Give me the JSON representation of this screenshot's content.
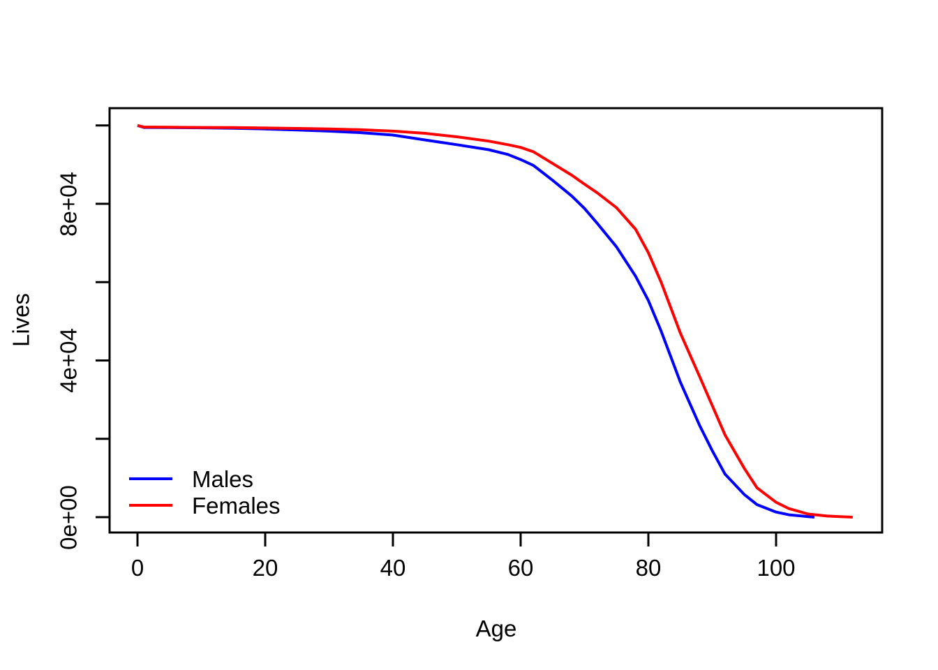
{
  "chart_data": {
    "type": "line",
    "title": "",
    "xlabel": "Age",
    "ylabel": "Lives",
    "xlim": [
      0,
      112
    ],
    "ylim": [
      0,
      100000
    ],
    "grid": false,
    "background": "#ffffff",
    "axis_color": "#000000",
    "x_ticks": [
      {
        "value": 0,
        "label": "0"
      },
      {
        "value": 20,
        "label": "20"
      },
      {
        "value": 40,
        "label": "40"
      },
      {
        "value": 60,
        "label": "60"
      },
      {
        "value": 80,
        "label": "80"
      },
      {
        "value": 100,
        "label": "100"
      }
    ],
    "y_ticks": [
      {
        "value": 0,
        "label": "0e+00"
      },
      {
        "value": 20000,
        "label": ""
      },
      {
        "value": 40000,
        "label": "4e+04"
      },
      {
        "value": 60000,
        "label": ""
      },
      {
        "value": 80000,
        "label": "8e+04"
      },
      {
        "value": 100000,
        "label": ""
      }
    ],
    "legend": {
      "position": "bottom-left",
      "box": false
    },
    "series": [
      {
        "name": "Males",
        "color": "#0000ff",
        "points": [
          [
            0,
            100000
          ],
          [
            1,
            99500
          ],
          [
            5,
            99450
          ],
          [
            10,
            99400
          ],
          [
            15,
            99300
          ],
          [
            20,
            99100
          ],
          [
            25,
            98850
          ],
          [
            30,
            98550
          ],
          [
            35,
            98150
          ],
          [
            40,
            97550
          ],
          [
            45,
            96300
          ],
          [
            50,
            95100
          ],
          [
            55,
            93800
          ],
          [
            58,
            92600
          ],
          [
            60,
            91300
          ],
          [
            62,
            89800
          ],
          [
            65,
            86000
          ],
          [
            68,
            82000
          ],
          [
            70,
            78800
          ],
          [
            72,
            75000
          ],
          [
            75,
            69000
          ],
          [
            78,
            61500
          ],
          [
            80,
            55300
          ],
          [
            82,
            47500
          ],
          [
            85,
            34500
          ],
          [
            88,
            23500
          ],
          [
            90,
            17000
          ],
          [
            92,
            11000
          ],
          [
            95,
            5800
          ],
          [
            97,
            3200
          ],
          [
            100,
            1300
          ],
          [
            102,
            600
          ],
          [
            105,
            150
          ],
          [
            106,
            0
          ]
        ]
      },
      {
        "name": "Females",
        "color": "#ff0000",
        "points": [
          [
            0,
            100000
          ],
          [
            1,
            99600
          ],
          [
            5,
            99550
          ],
          [
            10,
            99500
          ],
          [
            15,
            99450
          ],
          [
            20,
            99350
          ],
          [
            25,
            99250
          ],
          [
            30,
            99100
          ],
          [
            35,
            98900
          ],
          [
            40,
            98550
          ],
          [
            45,
            98000
          ],
          [
            50,
            97100
          ],
          [
            55,
            96000
          ],
          [
            58,
            95100
          ],
          [
            60,
            94400
          ],
          [
            62,
            93300
          ],
          [
            65,
            90300
          ],
          [
            68,
            87300
          ],
          [
            70,
            85000
          ],
          [
            72,
            82800
          ],
          [
            75,
            79000
          ],
          [
            78,
            73500
          ],
          [
            80,
            67500
          ],
          [
            82,
            60000
          ],
          [
            85,
            47000
          ],
          [
            88,
            36000
          ],
          [
            90,
            28500
          ],
          [
            92,
            21000
          ],
          [
            95,
            12500
          ],
          [
            97,
            7500
          ],
          [
            100,
            3800
          ],
          [
            102,
            2200
          ],
          [
            105,
            800
          ],
          [
            108,
            280
          ],
          [
            110,
            120
          ],
          [
            112,
            0
          ]
        ]
      }
    ]
  }
}
